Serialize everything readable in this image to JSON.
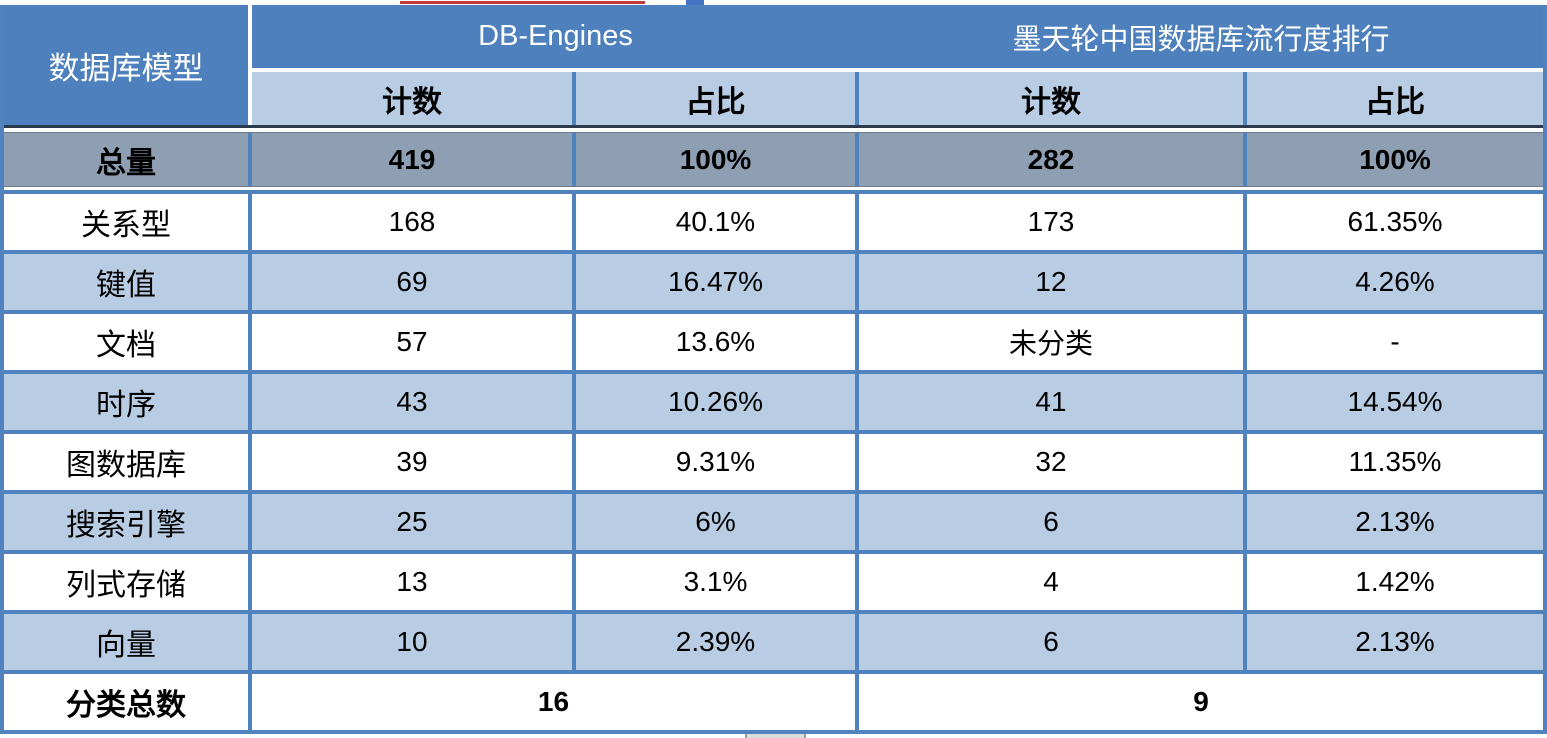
{
  "colors": {
    "header_blue": "#4d80bc",
    "light_blue": "#b8cce4",
    "total_row_gray": "#8f9fb3",
    "border_blue": "#5083be",
    "dark_rule": "#2b3a4e",
    "artifact_red": "#c23b3b",
    "artifact_blue": "#4472c4"
  },
  "chart_data": {
    "type": "table",
    "corner_header": "数据库模型",
    "column_groups": [
      {
        "label": "DB-Engines",
        "subcolumns": [
          "计数",
          "占比"
        ]
      },
      {
        "label": "墨天轮中国数据库流行度排行",
        "subcolumns": [
          "计数",
          "占比"
        ]
      }
    ],
    "total_row": {
      "label": "总量",
      "values": [
        "419",
        "100%",
        "282",
        "100%"
      ]
    },
    "rows": [
      {
        "label": "关系型",
        "values": [
          "168",
          "40.1%",
          "173",
          "61.35%"
        ]
      },
      {
        "label": "键值",
        "values": [
          "69",
          "16.47%",
          "12",
          "4.26%"
        ]
      },
      {
        "label": "文档",
        "values": [
          "57",
          "13.6%",
          "未分类",
          "-"
        ]
      },
      {
        "label": "时序",
        "values": [
          "43",
          "10.26%",
          "41",
          "14.54%"
        ]
      },
      {
        "label": "图数据库",
        "values": [
          "39",
          "9.31%",
          "32",
          "11.35%"
        ]
      },
      {
        "label": "搜索引擎",
        "values": [
          "25",
          "6%",
          "6",
          "2.13%"
        ]
      },
      {
        "label": "列式存储",
        "values": [
          "13",
          "3.1%",
          "4",
          "1.42%"
        ]
      },
      {
        "label": "向量",
        "values": [
          "10",
          "2.39%",
          "6",
          "2.13%"
        ]
      }
    ],
    "footer_row": {
      "label": "分类总数",
      "values": [
        "16",
        "9"
      ]
    }
  }
}
